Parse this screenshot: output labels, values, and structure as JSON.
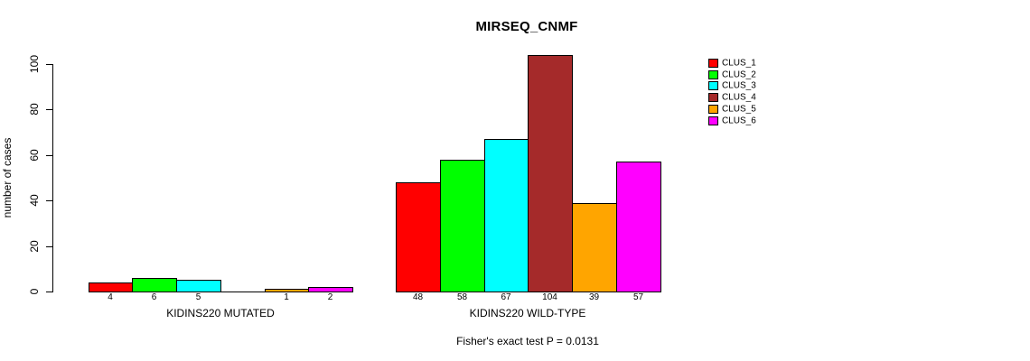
{
  "title": "MIRSEQ_CNMF",
  "footer": "Fisher's exact test P = 0.0131",
  "chart_data": {
    "type": "bar",
    "title": "MIRSEQ_CNMF",
    "xlabel": "",
    "ylabel": "number of cases",
    "ylim": [
      0,
      100
    ],
    "yticks": [
      0,
      20,
      40,
      60,
      80,
      100
    ],
    "grid": false,
    "legend_position": "right",
    "categories": [
      "KIDINS220 MUTATED",
      "KIDINS220 WILD-TYPE"
    ],
    "series": [
      {
        "name": "CLUS_1",
        "color": "#FF0000",
        "values": [
          4,
          48
        ]
      },
      {
        "name": "CLUS_2",
        "color": "#00FF00",
        "values": [
          6,
          58
        ]
      },
      {
        "name": "CLUS_3",
        "color": "#00FFFF",
        "values": [
          5,
          67
        ]
      },
      {
        "name": "CLUS_4",
        "color": "#A52A2A",
        "values": [
          0,
          104
        ]
      },
      {
        "name": "CLUS_5",
        "color": "#FFA500",
        "values": [
          1,
          39
        ]
      },
      {
        "name": "CLUS_6",
        "color": "#FF00FF",
        "values": [
          2,
          57
        ]
      }
    ],
    "bar_value_labels": [
      [
        "4",
        "6",
        "5",
        "",
        "1",
        "2"
      ],
      [
        "48",
        "58",
        "67",
        "104",
        "39",
        "57"
      ]
    ],
    "annotation": "Fisher's exact test P = 0.0131"
  }
}
